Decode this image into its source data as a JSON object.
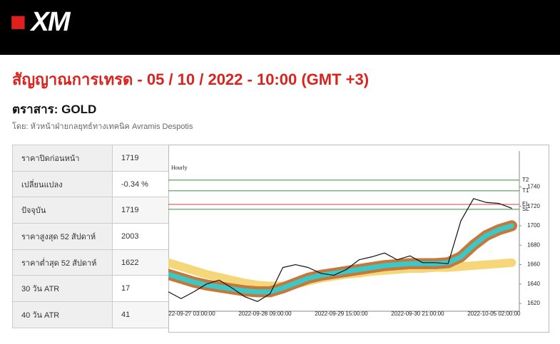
{
  "header": {
    "logo": "XM"
  },
  "title": "สัญญาณการเทรด - 05 / 10 / 2022 - 10:00 (GMT +3)",
  "instrument": "ตราสาร: GOLD",
  "author": "โดย: หัวหน้าฝ่ายกลยุทธ์ทางเทคนิค Avramis Despotis",
  "table": {
    "rows": [
      [
        "ราคาปิดก่อนหน้า",
        "1719"
      ],
      [
        "เปลี่ยนแปลง",
        "-0.34 %"
      ],
      [
        "ปัจจุบัน",
        "1719"
      ],
      [
        "ราคาสูงสุด 52 สัปดาห์",
        "2003"
      ],
      [
        "ราคาต่ำสุด 52 สัปดาห์",
        "1622"
      ],
      [
        "30 วัน ATR",
        "17"
      ],
      [
        "40 วัน ATR",
        "41"
      ]
    ]
  },
  "chart_data": {
    "type": "line",
    "title": "Hourly",
    "x": [
      0,
      5,
      10,
      15,
      20,
      25,
      30,
      35,
      40,
      45,
      50,
      55,
      60,
      65,
      70,
      75,
      80,
      85,
      90,
      95,
      100,
      105,
      110,
      115,
      120,
      125,
      130,
      135
    ],
    "xlim": [
      0,
      138
    ],
    "xticks": [
      {
        "value": 8,
        "label": "2022-09-27 03:00:00"
      },
      {
        "value": 38,
        "label": "2022-09-28 09:00:00"
      },
      {
        "value": 68,
        "label": "2022-09-29 15:00:00"
      },
      {
        "value": 98,
        "label": "2022-09-30 21:00:00"
      },
      {
        "value": 128,
        "label": "2022-10-05 02:00:00"
      }
    ],
    "ylim": [
      1612,
      1777
    ],
    "yticks": [
      1620,
      1640,
      1660,
      1680,
      1700,
      1720,
      1740
    ],
    "series": [
      {
        "color": "#f5d77a",
        "width": 12,
        "values": [
          1662,
          1658,
          1654,
          1650,
          1647,
          1644,
          1641,
          1639,
          1638,
          1638,
          1640,
          1643,
          1646,
          1648,
          1650,
          1651,
          1653,
          1654,
          1655,
          1656,
          1656,
          1657,
          1657,
          1658,
          1659,
          1660,
          1661,
          1662
        ]
      },
      {
        "color": "#3cc8c8",
        "edge_color": "#c4783a",
        "width": 7,
        "values": [
          1650,
          1646,
          1642,
          1639,
          1637,
          1635,
          1633,
          1632,
          1632,
          1636,
          1641,
          1646,
          1649,
          1651,
          1653,
          1655,
          1657,
          1659,
          1660,
          1661,
          1661,
          1661,
          1662,
          1668,
          1680,
          1690,
          1696,
          1700
        ]
      },
      {
        "color": "#111111",
        "width": 1.2,
        "values": [
          1632,
          1625,
          1632,
          1640,
          1644,
          1636,
          1627,
          1622,
          1630,
          1657,
          1660,
          1657,
          1651,
          1649,
          1655,
          1665,
          1668,
          1672,
          1665,
          1669,
          1662,
          1662,
          1661,
          1705,
          1728,
          1724,
          1723,
          1718
        ]
      }
    ],
    "levels": [
      {
        "label": "T2",
        "value": 1747,
        "color": "#3a8a3a"
      },
      {
        "label": "T1",
        "value": 1736,
        "color": "#3a8a3a"
      },
      {
        "label": "EL",
        "value": 1722,
        "color": "#d04040"
      },
      {
        "label": "SL",
        "value": 1717,
        "color": "#3a8a3a"
      }
    ]
  }
}
